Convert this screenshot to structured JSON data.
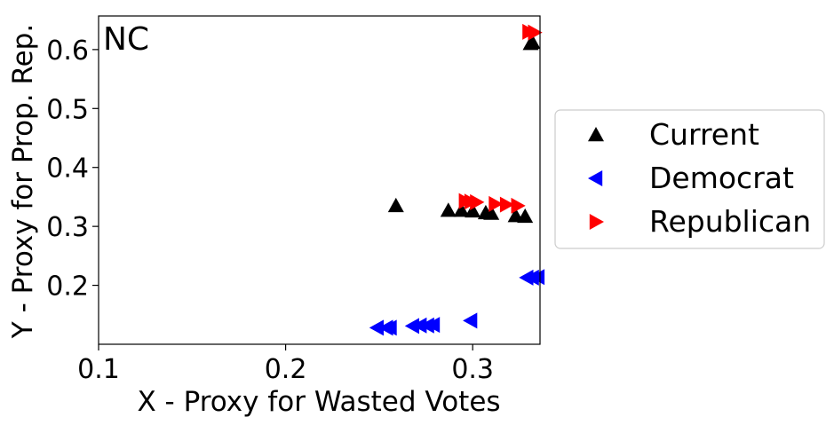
{
  "chart_data": {
    "type": "scatter",
    "panel_label": "NC",
    "xlabel": "X - Proxy for Wasted Votes",
    "ylabel": "Y - Proxy for Prop. Rep.",
    "xlim": [
      0.1,
      0.336
    ],
    "ylim": [
      0.1,
      0.657
    ],
    "xticks": [
      0.1,
      0.2,
      0.3
    ],
    "xtick_labels": [
      "0.1",
      "0.2",
      "0.3"
    ],
    "yticks": [
      0.2,
      0.3,
      0.4,
      0.5,
      0.6
    ],
    "ytick_labels": [
      "0.2",
      "0.3",
      "0.4",
      "0.5",
      "0.6"
    ],
    "grid": false,
    "legend_position": "outside-right",
    "series": [
      {
        "name": "Current",
        "marker": "triangle-up",
        "color": "#000000",
        "points": [
          {
            "x": 0.259,
            "y": 0.335
          },
          {
            "x": 0.287,
            "y": 0.327
          },
          {
            "x": 0.294,
            "y": 0.327
          },
          {
            "x": 0.3,
            "y": 0.326
          },
          {
            "x": 0.307,
            "y": 0.323
          },
          {
            "x": 0.31,
            "y": 0.322
          },
          {
            "x": 0.323,
            "y": 0.318
          },
          {
            "x": 0.328,
            "y": 0.317
          },
          {
            "x": 0.331,
            "y": 0.61
          },
          {
            "x": 0.332,
            "y": 0.612
          }
        ]
      },
      {
        "name": "Democrat",
        "marker": "triangle-left",
        "color": "#0000ff",
        "points": [
          {
            "x": 0.249,
            "y": 0.128
          },
          {
            "x": 0.254,
            "y": 0.128
          },
          {
            "x": 0.256,
            "y": 0.128
          },
          {
            "x": 0.268,
            "y": 0.131
          },
          {
            "x": 0.272,
            "y": 0.132
          },
          {
            "x": 0.276,
            "y": 0.132
          },
          {
            "x": 0.279,
            "y": 0.133
          },
          {
            "x": 0.299,
            "y": 0.14
          },
          {
            "x": 0.329,
            "y": 0.213
          },
          {
            "x": 0.332,
            "y": 0.213
          },
          {
            "x": 0.335,
            "y": 0.214
          }
        ]
      },
      {
        "name": "Republican",
        "marker": "triangle-right",
        "color": "#ff0000",
        "points": [
          {
            "x": 0.296,
            "y": 0.343
          },
          {
            "x": 0.299,
            "y": 0.342
          },
          {
            "x": 0.302,
            "y": 0.341
          },
          {
            "x": 0.312,
            "y": 0.338
          },
          {
            "x": 0.318,
            "y": 0.337
          },
          {
            "x": 0.324,
            "y": 0.335
          },
          {
            "x": 0.33,
            "y": 0.63
          },
          {
            "x": 0.333,
            "y": 0.629
          }
        ]
      }
    ]
  }
}
